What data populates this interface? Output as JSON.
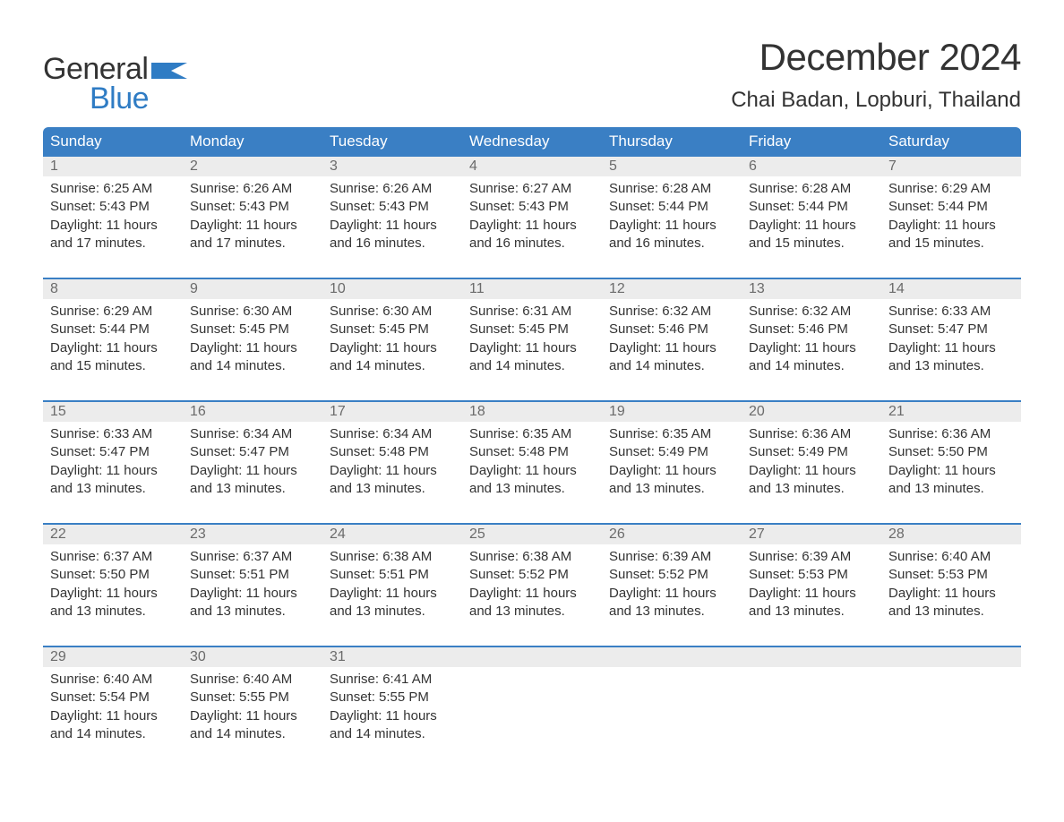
{
  "logo": {
    "text_top": "General",
    "text_bottom": "Blue",
    "top_color": "#333333",
    "bottom_color": "#2f7cc4",
    "flag_color": "#2f7cc4"
  },
  "title": "December 2024",
  "location": "Chai Badan, Lopburi, Thailand",
  "colors": {
    "header_bg": "#3a7fc4",
    "header_text": "#ffffff",
    "daynum_bg": "#ececec",
    "daynum_text": "#6b6b6b",
    "body_text": "#333333",
    "divider": "#3a7fc4",
    "background": "#ffffff"
  },
  "typography": {
    "title_fontsize": 42,
    "location_fontsize": 24,
    "weekday_fontsize": 17,
    "daynum_fontsize": 16,
    "cell_fontsize": 15,
    "logo_fontsize": 34
  },
  "weekdays": [
    "Sunday",
    "Monday",
    "Tuesday",
    "Wednesday",
    "Thursday",
    "Friday",
    "Saturday"
  ],
  "weeks": [
    [
      {
        "day": "1",
        "sunrise": "Sunrise: 6:25 AM",
        "sunset": "Sunset: 5:43 PM",
        "dl1": "Daylight: 11 hours",
        "dl2": "and 17 minutes."
      },
      {
        "day": "2",
        "sunrise": "Sunrise: 6:26 AM",
        "sunset": "Sunset: 5:43 PM",
        "dl1": "Daylight: 11 hours",
        "dl2": "and 17 minutes."
      },
      {
        "day": "3",
        "sunrise": "Sunrise: 6:26 AM",
        "sunset": "Sunset: 5:43 PM",
        "dl1": "Daylight: 11 hours",
        "dl2": "and 16 minutes."
      },
      {
        "day": "4",
        "sunrise": "Sunrise: 6:27 AM",
        "sunset": "Sunset: 5:43 PM",
        "dl1": "Daylight: 11 hours",
        "dl2": "and 16 minutes."
      },
      {
        "day": "5",
        "sunrise": "Sunrise: 6:28 AM",
        "sunset": "Sunset: 5:44 PM",
        "dl1": "Daylight: 11 hours",
        "dl2": "and 16 minutes."
      },
      {
        "day": "6",
        "sunrise": "Sunrise: 6:28 AM",
        "sunset": "Sunset: 5:44 PM",
        "dl1": "Daylight: 11 hours",
        "dl2": "and 15 minutes."
      },
      {
        "day": "7",
        "sunrise": "Sunrise: 6:29 AM",
        "sunset": "Sunset: 5:44 PM",
        "dl1": "Daylight: 11 hours",
        "dl2": "and 15 minutes."
      }
    ],
    [
      {
        "day": "8",
        "sunrise": "Sunrise: 6:29 AM",
        "sunset": "Sunset: 5:44 PM",
        "dl1": "Daylight: 11 hours",
        "dl2": "and 15 minutes."
      },
      {
        "day": "9",
        "sunrise": "Sunrise: 6:30 AM",
        "sunset": "Sunset: 5:45 PM",
        "dl1": "Daylight: 11 hours",
        "dl2": "and 14 minutes."
      },
      {
        "day": "10",
        "sunrise": "Sunrise: 6:30 AM",
        "sunset": "Sunset: 5:45 PM",
        "dl1": "Daylight: 11 hours",
        "dl2": "and 14 minutes."
      },
      {
        "day": "11",
        "sunrise": "Sunrise: 6:31 AM",
        "sunset": "Sunset: 5:45 PM",
        "dl1": "Daylight: 11 hours",
        "dl2": "and 14 minutes."
      },
      {
        "day": "12",
        "sunrise": "Sunrise: 6:32 AM",
        "sunset": "Sunset: 5:46 PM",
        "dl1": "Daylight: 11 hours",
        "dl2": "and 14 minutes."
      },
      {
        "day": "13",
        "sunrise": "Sunrise: 6:32 AM",
        "sunset": "Sunset: 5:46 PM",
        "dl1": "Daylight: 11 hours",
        "dl2": "and 14 minutes."
      },
      {
        "day": "14",
        "sunrise": "Sunrise: 6:33 AM",
        "sunset": "Sunset: 5:47 PM",
        "dl1": "Daylight: 11 hours",
        "dl2": "and 13 minutes."
      }
    ],
    [
      {
        "day": "15",
        "sunrise": "Sunrise: 6:33 AM",
        "sunset": "Sunset: 5:47 PM",
        "dl1": "Daylight: 11 hours",
        "dl2": "and 13 minutes."
      },
      {
        "day": "16",
        "sunrise": "Sunrise: 6:34 AM",
        "sunset": "Sunset: 5:47 PM",
        "dl1": "Daylight: 11 hours",
        "dl2": "and 13 minutes."
      },
      {
        "day": "17",
        "sunrise": "Sunrise: 6:34 AM",
        "sunset": "Sunset: 5:48 PM",
        "dl1": "Daylight: 11 hours",
        "dl2": "and 13 minutes."
      },
      {
        "day": "18",
        "sunrise": "Sunrise: 6:35 AM",
        "sunset": "Sunset: 5:48 PM",
        "dl1": "Daylight: 11 hours",
        "dl2": "and 13 minutes."
      },
      {
        "day": "19",
        "sunrise": "Sunrise: 6:35 AM",
        "sunset": "Sunset: 5:49 PM",
        "dl1": "Daylight: 11 hours",
        "dl2": "and 13 minutes."
      },
      {
        "day": "20",
        "sunrise": "Sunrise: 6:36 AM",
        "sunset": "Sunset: 5:49 PM",
        "dl1": "Daylight: 11 hours",
        "dl2": "and 13 minutes."
      },
      {
        "day": "21",
        "sunrise": "Sunrise: 6:36 AM",
        "sunset": "Sunset: 5:50 PM",
        "dl1": "Daylight: 11 hours",
        "dl2": "and 13 minutes."
      }
    ],
    [
      {
        "day": "22",
        "sunrise": "Sunrise: 6:37 AM",
        "sunset": "Sunset: 5:50 PM",
        "dl1": "Daylight: 11 hours",
        "dl2": "and 13 minutes."
      },
      {
        "day": "23",
        "sunrise": "Sunrise: 6:37 AM",
        "sunset": "Sunset: 5:51 PM",
        "dl1": "Daylight: 11 hours",
        "dl2": "and 13 minutes."
      },
      {
        "day": "24",
        "sunrise": "Sunrise: 6:38 AM",
        "sunset": "Sunset: 5:51 PM",
        "dl1": "Daylight: 11 hours",
        "dl2": "and 13 minutes."
      },
      {
        "day": "25",
        "sunrise": "Sunrise: 6:38 AM",
        "sunset": "Sunset: 5:52 PM",
        "dl1": "Daylight: 11 hours",
        "dl2": "and 13 minutes."
      },
      {
        "day": "26",
        "sunrise": "Sunrise: 6:39 AM",
        "sunset": "Sunset: 5:52 PM",
        "dl1": "Daylight: 11 hours",
        "dl2": "and 13 minutes."
      },
      {
        "day": "27",
        "sunrise": "Sunrise: 6:39 AM",
        "sunset": "Sunset: 5:53 PM",
        "dl1": "Daylight: 11 hours",
        "dl2": "and 13 minutes."
      },
      {
        "day": "28",
        "sunrise": "Sunrise: 6:40 AM",
        "sunset": "Sunset: 5:53 PM",
        "dl1": "Daylight: 11 hours",
        "dl2": "and 13 minutes."
      }
    ],
    [
      {
        "day": "29",
        "sunrise": "Sunrise: 6:40 AM",
        "sunset": "Sunset: 5:54 PM",
        "dl1": "Daylight: 11 hours",
        "dl2": "and 14 minutes."
      },
      {
        "day": "30",
        "sunrise": "Sunrise: 6:40 AM",
        "sunset": "Sunset: 5:55 PM",
        "dl1": "Daylight: 11 hours",
        "dl2": "and 14 minutes."
      },
      {
        "day": "31",
        "sunrise": "Sunrise: 6:41 AM",
        "sunset": "Sunset: 5:55 PM",
        "dl1": "Daylight: 11 hours",
        "dl2": "and 14 minutes."
      },
      {
        "day": "",
        "sunrise": "",
        "sunset": "",
        "dl1": "",
        "dl2": ""
      },
      {
        "day": "",
        "sunrise": "",
        "sunset": "",
        "dl1": "",
        "dl2": ""
      },
      {
        "day": "",
        "sunrise": "",
        "sunset": "",
        "dl1": "",
        "dl2": ""
      },
      {
        "day": "",
        "sunrise": "",
        "sunset": "",
        "dl1": "",
        "dl2": ""
      }
    ]
  ]
}
